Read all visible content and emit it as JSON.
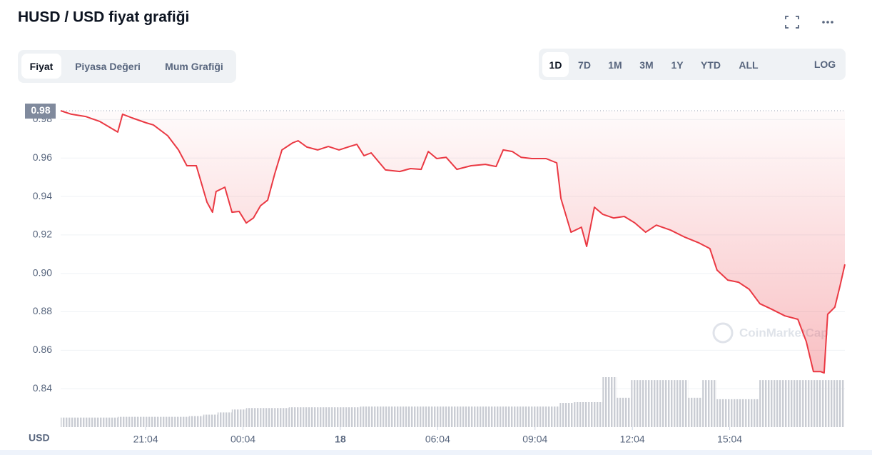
{
  "controls": {
    "tabs": [
      "Fiyat",
      "Piyasa Değeri",
      "Mum Grafiği"
    ],
    "active_tab": 0,
    "ranges": [
      "1D",
      "7D",
      "1M",
      "3M",
      "1Y",
      "YTD",
      "ALL"
    ],
    "active_range": 0,
    "log": "LOG"
  },
  "chart_data": {
    "type": "line",
    "title": "HUSD / USD fiyat grafiği",
    "x_label": "USD",
    "watermark": "CoinMarketCap",
    "color": "#ea3943",
    "x": [
      18.45,
      18.78,
      19.22,
      19.66,
      20.21,
      20.36,
      20.65,
      21.09,
      21.31,
      21.75,
      22.08,
      22.34,
      22.63,
      22.78,
      22.96,
      23.13,
      23.24,
      23.51,
      23.73,
      23.95,
      24.17,
      24.39,
      24.61,
      24.83,
      25.05,
      25.27,
      25.6,
      25.77,
      26.04,
      26.37,
      26.7,
      27.03,
      27.36,
      27.58,
      27.8,
      28.02,
      28.46,
      28.9,
      29.23,
      29.56,
      29.78,
      30.04,
      30.33,
      30.66,
      31.1,
      31.54,
      31.87,
      32.09,
      32.37,
      32.64,
      32.97,
      33.41,
      33.74,
      33.87,
      34.18,
      34.5,
      34.66,
      34.9,
      35.16,
      35.49,
      35.82,
      36.15,
      36.48,
      36.81,
      37.25,
      37.69,
      38.13,
      38.46,
      38.68,
      39.01,
      39.34,
      39.67,
      40.0,
      40.33,
      40.77,
      41.17,
      41.43,
      41.65,
      41.87,
      41.98,
      42.09,
      42.31,
      42.47,
      42.62
    ],
    "values": [
      0.9846,
      0.9828,
      0.9816,
      0.979,
      0.9735,
      0.9828,
      0.9809,
      0.9783,
      0.9772,
      0.9716,
      0.9642,
      0.956,
      0.956,
      0.9474,
      0.937,
      0.9318,
      0.9426,
      0.9448,
      0.9318,
      0.9322,
      0.9262,
      0.9288,
      0.9352,
      0.9381,
      0.9519,
      0.9642,
      0.9679,
      0.969,
      0.9657,
      0.9642,
      0.966,
      0.9642,
      0.966,
      0.9671,
      0.9612,
      0.9627,
      0.9538,
      0.953,
      0.9545,
      0.9541,
      0.9634,
      0.9597,
      0.9604,
      0.9541,
      0.956,
      0.9567,
      0.9556,
      0.9642,
      0.9634,
      0.9604,
      0.9597,
      0.9597,
      0.9575,
      0.9389,
      0.9214,
      0.924,
      0.914,
      0.9344,
      0.9307,
      0.9288,
      0.9296,
      0.9262,
      0.9214,
      0.9251,
      0.9225,
      0.9188,
      0.9158,
      0.9129,
      0.9017,
      0.8965,
      0.8954,
      0.8917,
      0.8842,
      0.8816,
      0.8779,
      0.8761,
      0.8645,
      0.8489,
      0.8489,
      0.8482,
      0.8787,
      0.8824,
      0.8935,
      0.9047
    ],
    "reference": {
      "value": 0.9846,
      "label": "0.98"
    },
    "xlim": [
      18.45,
      42.62
    ],
    "xticks": [
      {
        "value": 21.07,
        "label": "21:04"
      },
      {
        "value": 24.07,
        "label": "00:04"
      },
      {
        "value": 27.07,
        "label": "18"
      },
      {
        "value": 30.07,
        "label": "06:04"
      },
      {
        "value": 33.07,
        "label": "09:04"
      },
      {
        "value": 36.07,
        "label": "12:04"
      },
      {
        "value": 39.07,
        "label": "15:04"
      }
    ],
    "ylim": [
      0.82,
      0.99
    ],
    "yticks": [
      {
        "value": 0.84,
        "label": "0.84"
      },
      {
        "value": 0.86,
        "label": "0.86"
      },
      {
        "value": 0.88,
        "label": "0.88"
      },
      {
        "value": 0.9,
        "label": "0.90"
      },
      {
        "value": 0.92,
        "label": "0.92"
      },
      {
        "value": 0.94,
        "label": "0.94"
      },
      {
        "value": 0.96,
        "label": "0.96"
      },
      {
        "value": 0.98,
        "label": "0.98"
      }
    ],
    "grid": true,
    "volume": {
      "color": "#c9ccd3",
      "values": [
        13,
        13,
        13,
        13,
        14,
        14,
        14,
        14,
        14,
        15,
        17,
        20,
        24,
        26,
        26,
        26,
        27,
        27,
        27,
        27,
        27,
        28,
        28,
        28,
        28,
        28,
        28,
        28,
        28,
        28,
        28,
        28,
        28,
        28,
        28,
        33,
        34,
        34,
        68,
        40,
        64,
        64,
        64,
        64,
        40,
        64,
        38,
        38,
        38,
        64,
        64,
        64,
        64,
        64,
        64
      ]
    }
  }
}
